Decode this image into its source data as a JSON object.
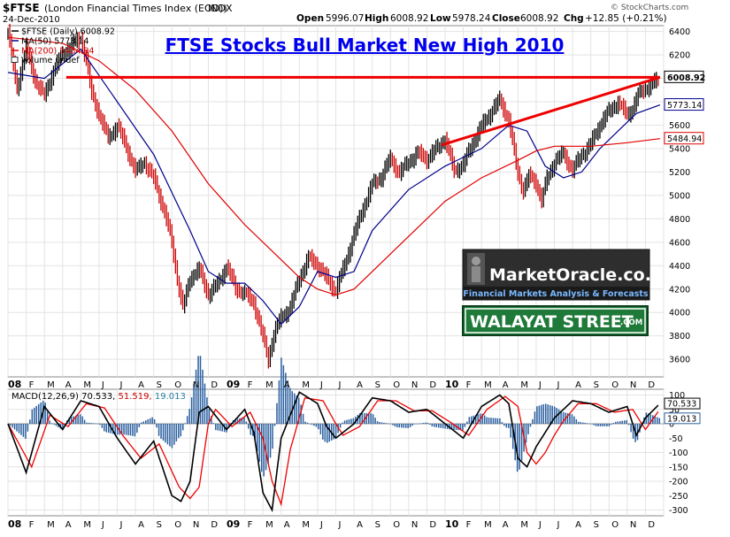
{
  "header": {
    "symbol": "$FTSE",
    "description": "(London Financial Times Index (EOD))",
    "exchange": "INDX",
    "date": "24-Dec-2010",
    "open_label": "Open",
    "open": "5996.07",
    "high_label": "High",
    "high": "6008.92",
    "low_label": "Low",
    "low": "5978.24",
    "close_label": "Close",
    "close": "6008.92",
    "chg_label": "Chg",
    "chg": "+12.85 (+0.21%)",
    "copyright": "© StockCharts.com"
  },
  "legend": {
    "price": "$FTSE (Daily) 6008.92",
    "ma50": "MA(50) 5773.14",
    "ma200": "MA(200) 5484.94",
    "volume": "Volume undef"
  },
  "title": "FTSE Stocks Bull Market New High 2010",
  "badges": {
    "marketoracle_name": "MarketOracle.co.uk",
    "marketoracle_tag": "Financial Markets Analysis & Forecasts",
    "walayat": "WALAYAT STREET",
    "walayat_suffix": ".COM"
  },
  "colors": {
    "price": "#000000",
    "up_bar": "#000000",
    "down_bar": "#cc0000",
    "ma50": "#00008b",
    "ma200": "#e00000",
    "trend": "#ee0000",
    "title": "#0000ee",
    "macd": "#000000",
    "signal": "#ee0000",
    "histogram": "#2a5fa0"
  },
  "chart_data": [
    {
      "type": "line",
      "x_axis_labels": [
        "08",
        "F",
        "M",
        "A",
        "M",
        "J",
        "J",
        "A",
        "S",
        "O",
        "N",
        "D",
        "09",
        "F",
        "M",
        "A",
        "M",
        "J",
        "J",
        "A",
        "S",
        "O",
        "N",
        "D",
        "10",
        "F",
        "M",
        "A",
        "M",
        "J",
        "J",
        "A",
        "S",
        "O",
        "N",
        "D"
      ],
      "y_ticks": [
        3600,
        3800,
        4000,
        4200,
        4400,
        4600,
        4800,
        5000,
        5200,
        5400,
        5600,
        5800,
        6000,
        6200,
        6400
      ],
      "ylim": [
        3450,
        6450
      ],
      "grid": true,
      "series": [
        {
          "name": "$FTSE (Daily)",
          "x": [
            0,
            0.5,
            1,
            1.5,
            2,
            2.5,
            3,
            3.5,
            4,
            4.3,
            4.6,
            5,
            5.5,
            6,
            6.5,
            7,
            7.5,
            8,
            8.5,
            9,
            9.3,
            9.6,
            10,
            10.5,
            11,
            11.5,
            12,
            12.5,
            13,
            13.5,
            14,
            14.3,
            14.6,
            15,
            15.5,
            16,
            16.5,
            17,
            17.5,
            18,
            18.5,
            19,
            19.5,
            20,
            20.5,
            21,
            21.5,
            22,
            22.5,
            23,
            23.5,
            24,
            24.5,
            25,
            25.5,
            26,
            26.5,
            27,
            27.5,
            28,
            28.3,
            28.6,
            29,
            29.3,
            29.6,
            30,
            30.5,
            31,
            31.5,
            32,
            32.5,
            33,
            33.5,
            34,
            34.3,
            34.6,
            35,
            35.4,
            35.8
          ],
          "values": [
            6400,
            5900,
            6250,
            6000,
            5850,
            6050,
            6200,
            6300,
            6350,
            6150,
            5850,
            5700,
            5500,
            5600,
            5400,
            5200,
            5300,
            5150,
            4900,
            4600,
            4300,
            4050,
            4300,
            4350,
            4150,
            4250,
            4400,
            4200,
            4150,
            4100,
            3800,
            3600,
            3800,
            3950,
            4050,
            4300,
            4450,
            4400,
            4300,
            4200,
            4400,
            4650,
            4900,
            5100,
            5150,
            5300,
            5200,
            5300,
            5350,
            5300,
            5400,
            5500,
            5200,
            5250,
            5450,
            5600,
            5700,
            5800,
            5650,
            5200,
            5050,
            5150,
            5100,
            4950,
            5150,
            5300,
            5350,
            5200,
            5350,
            5450,
            5600,
            5700,
            5800,
            5700,
            5750,
            5850,
            5900,
            5950,
            6008.92
          ]
        },
        {
          "name": "MA(50)",
          "x": [
            0,
            2,
            4,
            6,
            8,
            10,
            11,
            12,
            13,
            14,
            15,
            16,
            17,
            18,
            19,
            20,
            22,
            24,
            26,
            27.5,
            28.5,
            29.5,
            30.5,
            31.5,
            32.5,
            33.5,
            34.5,
            35.8
          ],
          "values": [
            6050,
            6000,
            6250,
            5800,
            5350,
            4700,
            4350,
            4250,
            4250,
            4100,
            3900,
            4050,
            4350,
            4300,
            4350,
            4700,
            5050,
            5250,
            5400,
            5600,
            5550,
            5250,
            5150,
            5200,
            5400,
            5550,
            5700,
            5773.14
          ]
        },
        {
          "name": "MA(200)",
          "x": [
            0,
            3,
            5,
            7,
            9,
            11,
            13,
            15,
            16,
            17,
            18,
            19,
            20,
            22,
            24,
            26,
            28,
            29,
            30,
            32,
            34,
            35.8
          ],
          "values": [
            6350,
            6300,
            6150,
            5900,
            5550,
            5100,
            4750,
            4450,
            4300,
            4200,
            4150,
            4200,
            4350,
            4650,
            4950,
            5150,
            5300,
            5380,
            5420,
            5420,
            5450,
            5484.94
          ]
        }
      ],
      "value_labels": [
        "6008.92",
        "5773.14",
        "5484.94"
      ],
      "trendlines": [
        {
          "x": [
            3.2,
            35.8
          ],
          "values": [
            6008.92,
            6008.92
          ]
        },
        {
          "x": [
            23.8,
            35.8
          ],
          "values": [
            5430,
            6008.92
          ]
        }
      ]
    },
    {
      "type": "line",
      "title": "MACD(12,26,9) 70.533, 51.519, 19.013",
      "legend_parts": [
        "MACD(12,26,9) 70.533,",
        "51.519,",
        "19.013"
      ],
      "x_axis_labels": [
        "08",
        "F",
        "M",
        "A",
        "M",
        "J",
        "J",
        "A",
        "S",
        "O",
        "N",
        "D",
        "09",
        "F",
        "M",
        "A",
        "M",
        "J",
        "J",
        "A",
        "S",
        "O",
        "N",
        "D",
        "10",
        "F",
        "M",
        "A",
        "M",
        "J",
        "J",
        "A",
        "S",
        "O",
        "N",
        "D"
      ],
      "y_ticks": [
        -300,
        -250,
        -200,
        -150,
        -100,
        -50,
        0,
        50,
        100
      ],
      "ylim": [
        -320,
        120
      ],
      "grid": true,
      "series": [
        {
          "name": "MACD",
          "x": [
            0,
            1,
            2,
            3,
            4,
            5,
            6,
            7,
            8,
            9,
            9.5,
            10,
            10.5,
            11,
            12,
            13,
            13.5,
            14,
            14.5,
            15,
            16,
            17,
            17.5,
            18,
            19,
            20,
            21,
            22,
            23,
            24,
            25,
            26,
            27,
            27.5,
            28,
            28.5,
            29,
            29.5,
            30,
            31,
            32,
            33,
            34,
            34.5,
            35,
            35.8
          ],
          "values": [
            0,
            -170,
            60,
            -20,
            80,
            60,
            -50,
            -140,
            -60,
            -250,
            -270,
            -200,
            40,
            60,
            -20,
            50,
            -30,
            -240,
            -300,
            -50,
            110,
            70,
            -10,
            -50,
            0,
            90,
            80,
            40,
            50,
            0,
            -50,
            60,
            100,
            70,
            -120,
            -150,
            -80,
            -30,
            20,
            80,
            70,
            40,
            60,
            -40,
            20,
            70.533
          ]
        },
        {
          "name": "Signal",
          "x": [
            0,
            1.3,
            2.3,
            3.3,
            4.3,
            5.3,
            6.3,
            7.3,
            8.3,
            9.4,
            10,
            10.5,
            11,
            11.4,
            12.3,
            13.3,
            14,
            14.5,
            15,
            15.5,
            16.3,
            17.3,
            18,
            18.4,
            19.3,
            20.3,
            21.3,
            22.3,
            23.3,
            24.3,
            25.3,
            26.3,
            27.3,
            28,
            28.5,
            29,
            29.5,
            30,
            30.5,
            31.3,
            32.3,
            33.3,
            34.3,
            35,
            35.8
          ],
          "values": [
            0,
            -150,
            30,
            -10,
            70,
            55,
            -40,
            -120,
            -70,
            -220,
            -260,
            -220,
            0,
            50,
            -10,
            40,
            -50,
            -200,
            -280,
            -90,
            90,
            80,
            0,
            -40,
            -10,
            80,
            80,
            45,
            45,
            5,
            -40,
            50,
            95,
            60,
            -100,
            -140,
            -100,
            -40,
            10,
            70,
            70,
            40,
            50,
            -20,
            51.519
          ]
        }
      ],
      "value_labels": [
        "100",
        "70.533",
        "19.013"
      ]
    }
  ]
}
